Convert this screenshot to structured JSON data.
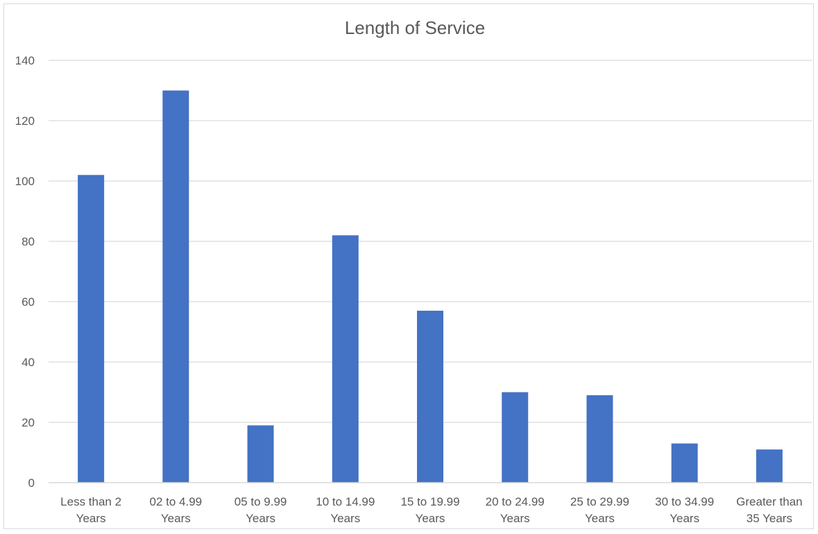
{
  "chart_data": {
    "type": "bar",
    "title": "Length of Service",
    "xlabel": "",
    "ylabel": "",
    "categories": [
      [
        "Less than 2",
        "Years"
      ],
      [
        "02 to 4.99",
        "Years"
      ],
      [
        "05 to 9.99",
        "Years"
      ],
      [
        "10 to 14.99",
        "Years"
      ],
      [
        "15 to 19.99",
        "Years"
      ],
      [
        "20 to 24.99",
        "Years"
      ],
      [
        "25 to 29.99",
        "Years"
      ],
      [
        "30 to 34.99",
        "Years"
      ],
      [
        "Greater than",
        "35 Years"
      ]
    ],
    "values": [
      102,
      130,
      19,
      82,
      57,
      30,
      29,
      13,
      11
    ],
    "ylim": [
      0,
      140
    ],
    "yticks": [
      0,
      20,
      40,
      60,
      80,
      100,
      120,
      140
    ],
    "grid": true,
    "legend": "none",
    "colors": {
      "bar": "#4472c4",
      "grid": "#d9d9d9",
      "text": "#595959"
    }
  }
}
